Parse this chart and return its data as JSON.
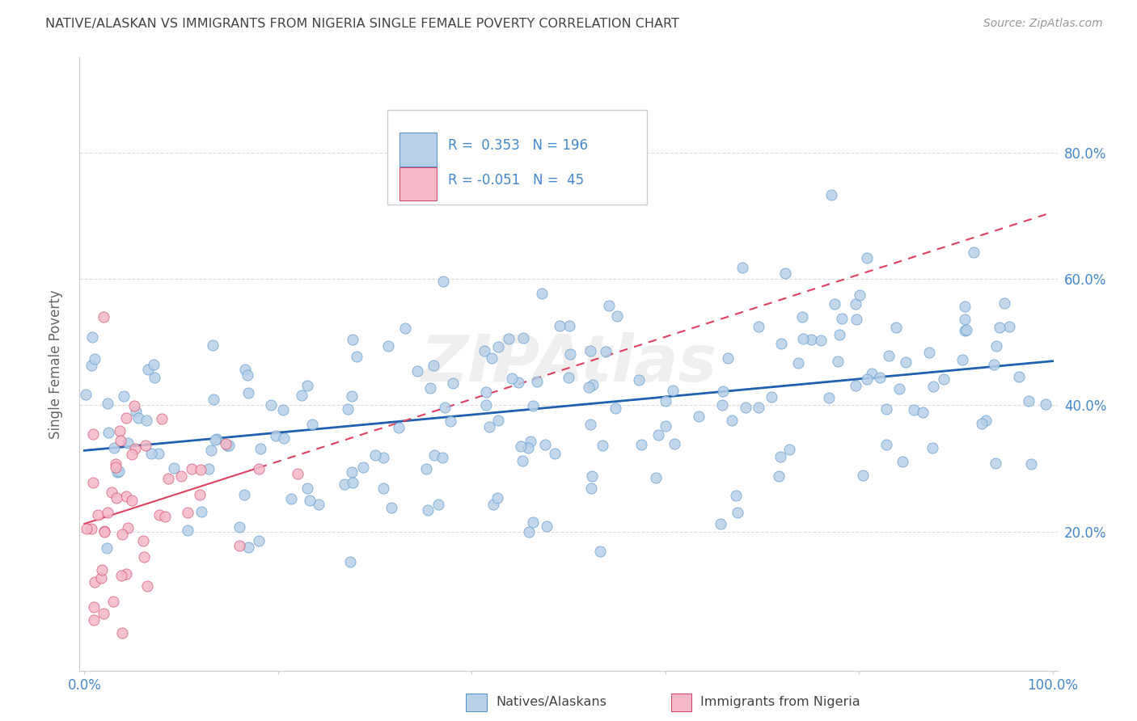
{
  "title": "NATIVE/ALASKAN VS IMMIGRANTS FROM NIGERIA SINGLE FEMALE POVERTY CORRELATION CHART",
  "source": "Source: ZipAtlas.com",
  "ylabel": "Single Female Poverty",
  "yticks": [
    0.2,
    0.4,
    0.6,
    0.8
  ],
  "ytick_labels": [
    "20.0%",
    "40.0%",
    "60.0%",
    "80.0%"
  ],
  "blue_R": 0.353,
  "blue_N": 196,
  "pink_R": -0.051,
  "pink_N": 45,
  "blue_color": "#b8d0e8",
  "pink_color": "#f5b8c8",
  "blue_edge_color": "#5090c8",
  "pink_edge_color": "#d04060",
  "blue_line_color": "#2060b0",
  "pink_line_color": "#e04060",
  "watermark": "ZIPAtlas",
  "background_color": "#ffffff",
  "grid_color": "#cccccc",
  "title_color": "#444444",
  "axis_label_color": "#4488cc"
}
